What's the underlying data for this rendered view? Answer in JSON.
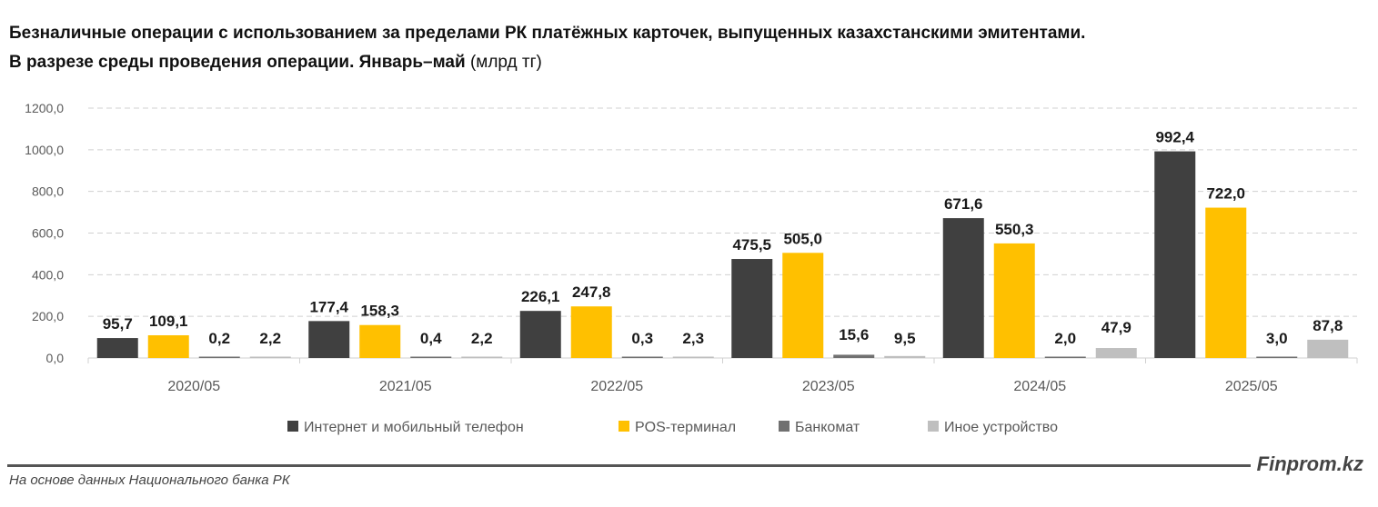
{
  "chart_data": {
    "type": "bar",
    "title_line1": "Безналичные операции с использованием за пределами РК платёжных карточек, выпущенных казахстанскими эмитентами.",
    "title_line2": "В разрезе среды проведения операции. Январь–май",
    "title_unit": "(млрд тг)",
    "categories": [
      "2020/05",
      "2021/05",
      "2022/05",
      "2023/05",
      "2024/05",
      "2025/05"
    ],
    "series": [
      {
        "name": "Интернет и мобильный телефон",
        "color": "#404040",
        "values": [
          95.7,
          177.4,
          226.1,
          475.5,
          671.6,
          992.4
        ],
        "labels": [
          "95,7",
          "177,4",
          "226,1",
          "475,5",
          "671,6",
          "992,4"
        ]
      },
      {
        "name": "POS-терминал",
        "color": "#FFC000",
        "values": [
          109.1,
          158.3,
          247.8,
          505.0,
          550.3,
          722.0
        ],
        "labels": [
          "109,1",
          "158,3",
          "247,8",
          "505,0",
          "550,3",
          "722,0"
        ]
      },
      {
        "name": "Банкомат",
        "color": "#707070",
        "values": [
          0.2,
          0.4,
          0.3,
          15.6,
          2.0,
          3.0
        ],
        "labels": [
          "0,2",
          "0,4",
          "0,3",
          "15,6",
          "2,0",
          "3,0"
        ]
      },
      {
        "name": "Иное устройство",
        "color": "#BFBFBF",
        "values": [
          2.2,
          2.2,
          2.3,
          9.5,
          47.9,
          87.8
        ],
        "labels": [
          "2,2",
          "2,2",
          "2,3",
          "9,5",
          "47,9",
          "87,8"
        ]
      }
    ],
    "yticks": [
      "0,0",
      "200,0",
      "400,0",
      "600,0",
      "800,0",
      "1000,0",
      "1200,0"
    ],
    "ylim": [
      0,
      1200
    ],
    "grid": true,
    "legend": "bottom"
  },
  "footer": {
    "source": "На основе данных Национального банка РК",
    "brand": "Finprom.kz"
  }
}
